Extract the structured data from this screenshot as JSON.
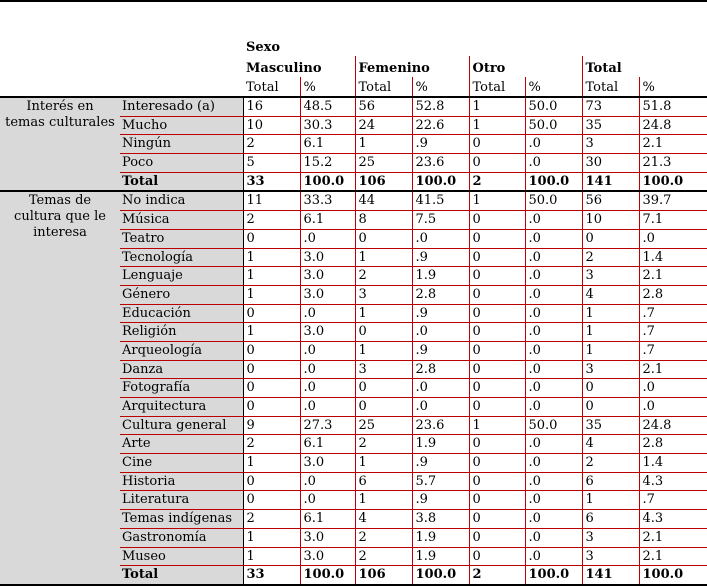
{
  "colors": {
    "grid_red": "#b80000",
    "vline_red": "#c00000",
    "label_bg": "#d9d9d9",
    "frame_black": "#000000"
  },
  "table": {
    "spanner": "Sexo",
    "col_groups": [
      "Masculino",
      "Femenino",
      "Otro",
      "Total"
    ],
    "sub_headers": [
      "Total",
      "%",
      "Total",
      "%",
      "Total",
      "%",
      "Total",
      "%"
    ],
    "groups": [
      {
        "label": "Interés en temas culturales",
        "label_lines": [
          "Interés en",
          "temas culturales"
        ],
        "rows": [
          {
            "category": "Interesado (a)",
            "bold": false,
            "values": [
              "16",
              "48.5",
              "56",
              "52.8",
              "1",
              "50.0",
              "73",
              "51.8"
            ]
          },
          {
            "category": "Mucho",
            "bold": false,
            "values": [
              "10",
              "30.3",
              "24",
              "22.6",
              "1",
              "50.0",
              "35",
              "24.8"
            ]
          },
          {
            "category": "Ningún",
            "bold": false,
            "values": [
              "2",
              "6.1",
              "1",
              ".9",
              "0",
              ".0",
              "3",
              "2.1"
            ]
          },
          {
            "category": "Poco",
            "bold": false,
            "values": [
              "5",
              "15.2",
              "25",
              "23.6",
              "0",
              ".0",
              "30",
              "21.3"
            ]
          },
          {
            "category": "Total",
            "bold": true,
            "values": [
              "33",
              "100.0",
              "106",
              "100.0",
              "2",
              "100.0",
              "141",
              "100.0"
            ]
          }
        ]
      },
      {
        "label": "Temas de cultura que le interesa",
        "label_lines": [
          "Temas de",
          "cultura que le",
          "interesa"
        ],
        "rows": [
          {
            "category": "No indica",
            "bold": false,
            "values": [
              "11",
              "33.3",
              "44",
              "41.5",
              "1",
              "50.0",
              "56",
              "39.7"
            ]
          },
          {
            "category": "Música",
            "bold": false,
            "values": [
              "2",
              "6.1",
              "8",
              "7.5",
              "0",
              ".0",
              "10",
              "7.1"
            ]
          },
          {
            "category": "Teatro",
            "bold": false,
            "values": [
              "0",
              ".0",
              "0",
              ".0",
              "0",
              ".0",
              "0",
              ".0"
            ]
          },
          {
            "category": "Tecnología",
            "bold": false,
            "values": [
              "1",
              "3.0",
              "1",
              ".9",
              "0",
              ".0",
              "2",
              "1.4"
            ]
          },
          {
            "category": "Lenguaje",
            "bold": false,
            "values": [
              "1",
              "3.0",
              "2",
              "1.9",
              "0",
              ".0",
              "3",
              "2.1"
            ]
          },
          {
            "category": "Género",
            "bold": false,
            "values": [
              "1",
              "3.0",
              "3",
              "2.8",
              "0",
              ".0",
              "4",
              "2.8"
            ]
          },
          {
            "category": "Educación",
            "bold": false,
            "values": [
              "0",
              ".0",
              "1",
              ".9",
              "0",
              ".0",
              "1",
              ".7"
            ]
          },
          {
            "category": "Religión",
            "bold": false,
            "values": [
              "1",
              "3.0",
              "0",
              ".0",
              "0",
              ".0",
              "1",
              ".7"
            ]
          },
          {
            "category": "Arqueología",
            "bold": false,
            "values": [
              "0",
              ".0",
              "1",
              ".9",
              "0",
              ".0",
              "1",
              ".7"
            ]
          },
          {
            "category": "Danza",
            "bold": false,
            "values": [
              "0",
              ".0",
              "3",
              "2.8",
              "0",
              ".0",
              "3",
              "2.1"
            ]
          },
          {
            "category": "Fotografía",
            "bold": false,
            "values": [
              "0",
              ".0",
              "0",
              ".0",
              "0",
              ".0",
              "0",
              ".0"
            ]
          },
          {
            "category": "Arquitectura",
            "bold": false,
            "values": [
              "0",
              ".0",
              "0",
              ".0",
              "0",
              ".0",
              "0",
              ".0"
            ]
          },
          {
            "category": "Cultura general",
            "bold": false,
            "values": [
              "9",
              "27.3",
              "25",
              "23.6",
              "1",
              "50.0",
              "35",
              "24.8"
            ]
          },
          {
            "category": "Arte",
            "bold": false,
            "values": [
              "2",
              "6.1",
              "2",
              "1.9",
              "0",
              ".0",
              "4",
              "2.8"
            ]
          },
          {
            "category": "Cine",
            "bold": false,
            "values": [
              "1",
              "3.0",
              "1",
              ".9",
              "0",
              ".0",
              "2",
              "1.4"
            ]
          },
          {
            "category": "Historia",
            "bold": false,
            "values": [
              "0",
              ".0",
              "6",
              "5.7",
              "0",
              ".0",
              "6",
              "4.3"
            ]
          },
          {
            "category": "Literatura",
            "bold": false,
            "values": [
              "0",
              ".0",
              "1",
              ".9",
              "0",
              ".0",
              "1",
              ".7"
            ]
          },
          {
            "category": "Temas indígenas",
            "bold": false,
            "values": [
              "2",
              "6.1",
              "4",
              "3.8",
              "0",
              ".0",
              "6",
              "4.3"
            ]
          },
          {
            "category": "Gastronomía",
            "bold": false,
            "values": [
              "1",
              "3.0",
              "2",
              "1.9",
              "0",
              ".0",
              "3",
              "2.1"
            ]
          },
          {
            "category": "Museo",
            "bold": false,
            "values": [
              "1",
              "3.0",
              "2",
              "1.9",
              "0",
              ".0",
              "3",
              "2.1"
            ]
          },
          {
            "category": "Total",
            "bold": true,
            "values": [
              "33",
              "100.0",
              "106",
              "100.0",
              "2",
              "100.0",
              "141",
              "100.0"
            ]
          }
        ]
      }
    ]
  }
}
